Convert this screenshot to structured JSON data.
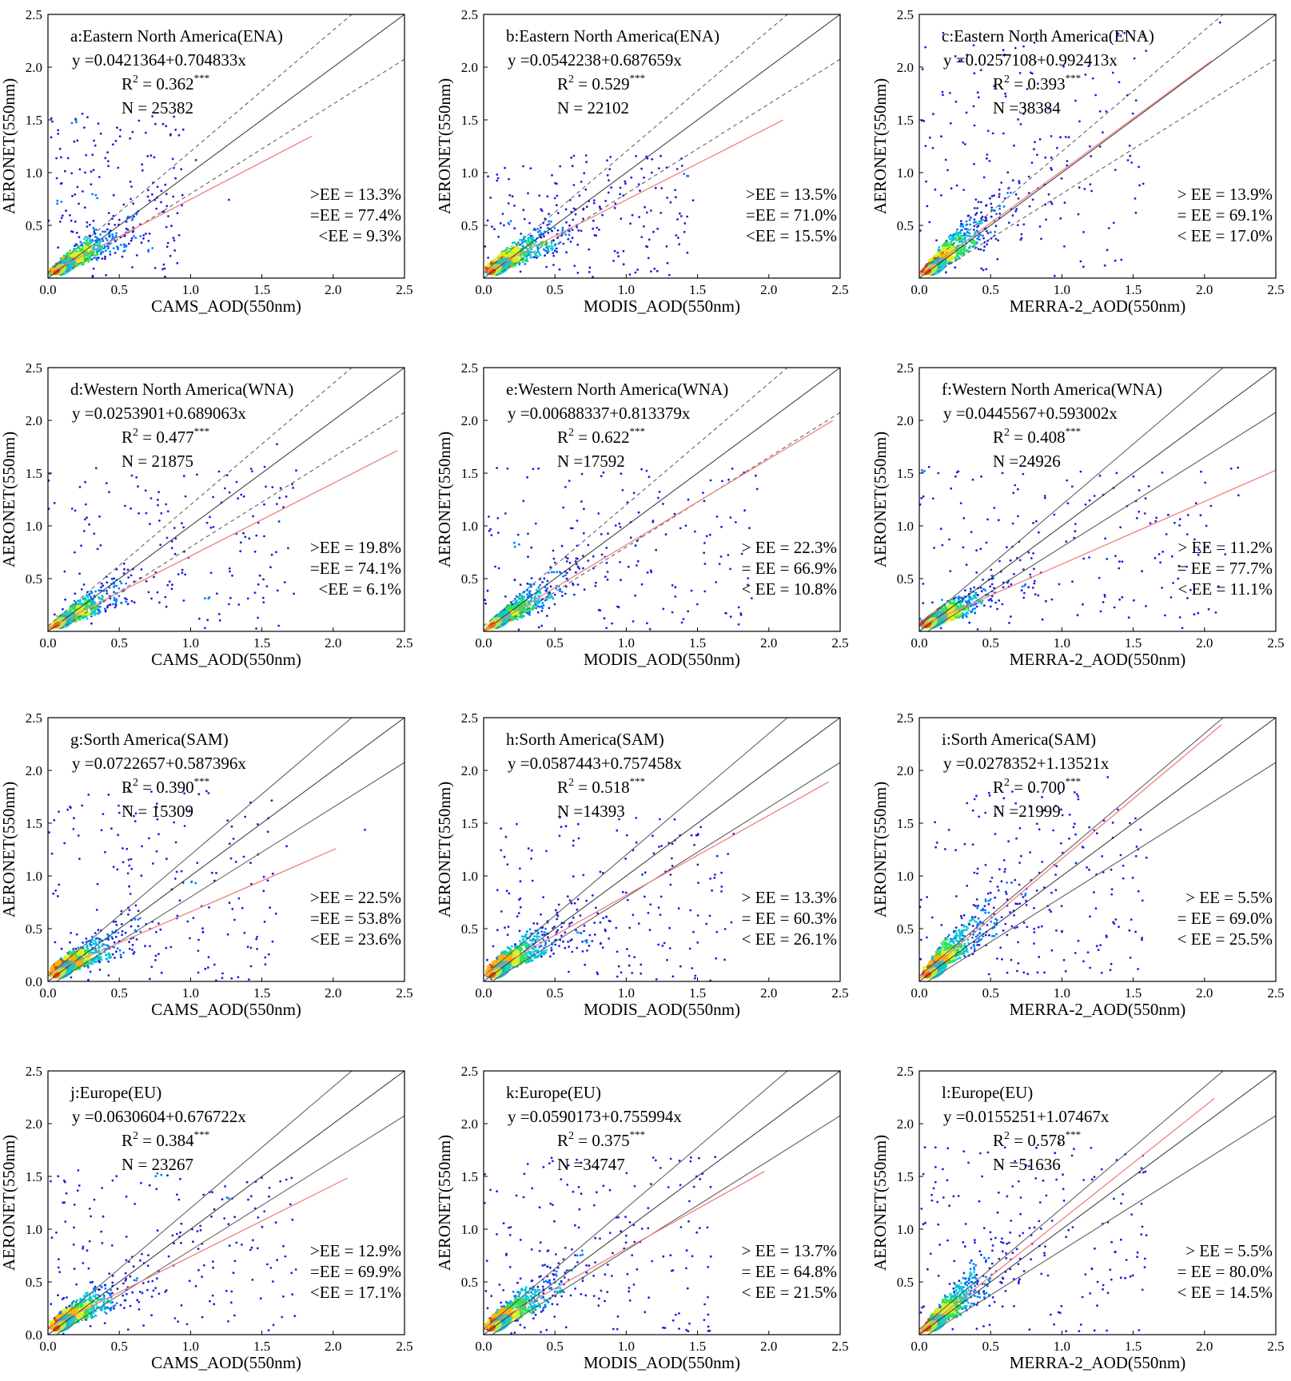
{
  "chart_data": [
    {
      "panel": "a",
      "type": "scatter",
      "title": "a:Eastern North America(ENA)",
      "equation": "y =0.0421364+0.704833x",
      "r2_value": "0.362",
      "r2_sig": "***",
      "n_text": "N = 25382",
      "intercept": 0.0421364,
      "slope": 0.704833,
      "fit_xmax": 1.85,
      "xlabel": "CAMS_AOD(550nm)",
      "ylabel": "AERONET(550nm)",
      "ee_above": ">EE = 13.3%",
      "ee_within": "=EE = 77.4%",
      "ee_below": "<EE = 9.3%",
      "ee_dashed": true,
      "spread_x": 0.3,
      "spread_y": 0.6,
      "xlim": [
        0,
        2.5
      ],
      "ylim": [
        0,
        2.5
      ]
    },
    {
      "panel": "b",
      "type": "scatter",
      "title": "b:Eastern North America(ENA)",
      "equation": "y =0.0542238+0.687659x",
      "r2_value": "0.529",
      "r2_sig": "***",
      "n_text": "N = 22102",
      "intercept": 0.0542238,
      "slope": 0.687659,
      "fit_xmax": 2.1,
      "xlabel": "MODIS_AOD(550nm)",
      "ylabel": "AERONET(550nm)",
      "ee_above": ">EE = 13.5%",
      "ee_within": "=EE = 71.0%",
      "ee_below": "<EE = 15.5%",
      "ee_dashed": true,
      "spread_x": 0.45,
      "spread_y": 0.45,
      "xlim": [
        0,
        2.5
      ],
      "ylim": [
        0,
        2.5
      ]
    },
    {
      "panel": "c",
      "type": "scatter",
      "title": "c:Eastern North America(ENA)",
      "equation": "y =0.0257108+0.992413x",
      "r2_value": "0.393",
      "r2_sig": "***",
      "n_text": "N =38384",
      "intercept": 0.0257108,
      "slope": 0.992413,
      "fit_xmax": 2.05,
      "xlabel": "MERRA-2_AOD(550nm)",
      "ylabel": "AERONET(550nm)",
      "ee_above": "> EE = 13.9%",
      "ee_within": "= EE = 69.1%",
      "ee_below": "< EE = 17.0%",
      "ee_dashed": true,
      "spread_x": 0.5,
      "spread_y": 0.9,
      "xlim": [
        0,
        2.5
      ],
      "ylim": [
        0,
        2.5
      ]
    },
    {
      "panel": "d",
      "type": "scatter",
      "title": "d:Western North America(WNA)",
      "equation": "y =0.0253901+0.689063x",
      "r2_value": "0.477",
      "r2_sig": "***",
      "n_text": "N = 21875",
      "intercept": 0.0253901,
      "slope": 0.689063,
      "fit_xmax": 2.45,
      "xlabel": "CAMS_AOD(550nm)",
      "ylabel": "AERONET(550nm)",
      "ee_above": ">EE = 19.8%",
      "ee_within": "=EE = 74.1%",
      "ee_below": "<EE = 6.1%",
      "ee_dashed": true,
      "spread_x": 0.55,
      "spread_y": 0.6,
      "xlim": [
        0,
        2.5
      ],
      "ylim": [
        0,
        2.5
      ]
    },
    {
      "panel": "e",
      "type": "scatter",
      "title": "e:Western North America(WNA)",
      "equation": "y =0.00688337+0.813379x",
      "r2_value": "0.622",
      "r2_sig": "***",
      "n_text": "N =17592",
      "intercept": 0.00688337,
      "slope": 0.813379,
      "fit_xmax": 2.45,
      "xlabel": "MODIS_AOD(550nm)",
      "ylabel": "AERONET(550nm)",
      "ee_above": "> EE = 22.3%",
      "ee_within": "= EE = 66.9%",
      "ee_below": "< EE = 10.8%",
      "ee_dashed": true,
      "spread_x": 0.6,
      "spread_y": 0.6,
      "xlim": [
        0,
        2.5
      ],
      "ylim": [
        0,
        2.5
      ]
    },
    {
      "panel": "f",
      "type": "scatter",
      "title": "f:Western North America(WNA)",
      "equation": "y =0.0445567+0.593002x",
      "r2_value": "0.408",
      "r2_sig": "***",
      "n_text": "N =24926",
      "intercept": 0.0445567,
      "slope": 0.593002,
      "fit_xmax": 2.5,
      "xlabel": "MERRA-2_AOD(550nm)",
      "ylabel": "AERONET(550nm)",
      "ee_above": "> EE = 11.2%",
      "ee_within": "= EE = 77.7%",
      "ee_below": "< EE = 11.1%",
      "ee_dashed": false,
      "spread_x": 0.7,
      "spread_y": 0.6,
      "xlim": [
        0,
        2.5
      ],
      "ylim": [
        0,
        2.5
      ]
    },
    {
      "panel": "g",
      "type": "scatter",
      "title": "g:Sorth America(SAM)",
      "equation": "y =0.0722657+0.587396x",
      "r2_value": "0.390",
      "r2_sig": "***",
      "n_text": "N = 15309",
      "intercept": 0.0722657,
      "slope": 0.587396,
      "fit_xmax": 2.02,
      "xlabel": "CAMS_AOD(550nm)",
      "ylabel": "AERONET(550nm)",
      "ee_above": ">EE = 22.5%",
      "ee_within": "=EE = 53.8%",
      "ee_below": "<EE = 23.6%",
      "ee_dashed": false,
      "spread_x": 0.5,
      "spread_y": 0.7,
      "xlim": [
        0,
        2.5
      ],
      "ylim": [
        0,
        2.5
      ]
    },
    {
      "panel": "h",
      "type": "scatter",
      "title": "h:Sorth America(SAM)",
      "equation": "y =0.0587443+0.757458x",
      "r2_value": "0.518",
      "r2_sig": "***",
      "n_text": "N =14393",
      "intercept": 0.0587443,
      "slope": 0.757458,
      "fit_xmax": 2.42,
      "xlabel": "MODIS_AOD(550nm)",
      "ylabel": "AERONET(550nm)",
      "ee_above": "> EE = 13.3%",
      "ee_within": "= EE = 60.3%",
      "ee_below": "< EE = 26.1%",
      "ee_dashed": false,
      "spread_x": 0.55,
      "spread_y": 0.6,
      "xlim": [
        0,
        2.5
      ],
      "ylim": [
        0,
        2.5
      ]
    },
    {
      "panel": "i",
      "type": "scatter",
      "title": "i:Sorth America(SAM)",
      "equation": "y =0.0278352+1.13521x",
      "r2_value": "0.700",
      "r2_sig": "***",
      "n_text": "N =21999",
      "intercept": 0.0278352,
      "slope": 1.13521,
      "fit_xmax": 2.12,
      "xlabel": "MERRA-2_AOD(550nm)",
      "ylabel": "AERONET(550nm)",
      "ee_above": "> EE = 5.5%",
      "ee_within": "= EE = 69.0%",
      "ee_below": "< EE = 25.5%",
      "ee_dashed": false,
      "spread_x": 0.5,
      "spread_y": 0.7,
      "xlim": [
        0,
        2.5
      ],
      "ylim": [
        0,
        2.5
      ]
    },
    {
      "panel": "j",
      "type": "scatter",
      "title": "j:Europe(EU)",
      "equation": "y =0.0630604+0.676722x",
      "r2_value": "0.384",
      "r2_sig": "***",
      "n_text": "N = 23267",
      "intercept": 0.0630604,
      "slope": 0.676722,
      "fit_xmax": 2.1,
      "xlabel": "CAMS_AOD(550nm)",
      "ylabel": "AERONET(550nm)",
      "ee_above": ">EE = 12.9%",
      "ee_within": "=EE = 69.9%",
      "ee_below": "<EE = 17.1%",
      "ee_dashed": false,
      "spread_x": 0.55,
      "spread_y": 0.6,
      "xlim": [
        0,
        2.5
      ],
      "ylim": [
        0,
        2.5
      ]
    },
    {
      "panel": "k",
      "type": "scatter",
      "title": "k:Europe(EU)",
      "equation": "y =0.0590173+0.755994x",
      "r2_value": "0.375",
      "r2_sig": "***",
      "n_text": "N =34747",
      "intercept": 0.0590173,
      "slope": 0.755994,
      "fit_xmax": 1.97,
      "xlabel": "MODIS_AOD(550nm)",
      "ylabel": "AERONET(550nm)",
      "ee_above": "> EE = 13.7%",
      "ee_within": "= EE = 64.8%",
      "ee_below": "< EE = 21.5%",
      "ee_dashed": false,
      "spread_x": 0.5,
      "spread_y": 0.65,
      "xlim": [
        0,
        2.5
      ],
      "ylim": [
        0,
        2.5
      ]
    },
    {
      "panel": "l",
      "type": "scatter",
      "title": "l:Europe(EU)",
      "equation": "y =0.0155251+1.07467x",
      "r2_value": "0.578",
      "r2_sig": "***",
      "n_text": "N =51636",
      "intercept": 0.0155251,
      "slope": 1.07467,
      "fit_xmax": 2.07,
      "xlabel": "MERRA-2_AOD(550nm)",
      "ylabel": "AERONET(550nm)",
      "ee_above": "> EE = 5.5%",
      "ee_within": "= EE = 80.0%",
      "ee_below": "< EE = 14.5%",
      "ee_dashed": false,
      "spread_x": 0.5,
      "spread_y": 0.7,
      "xlim": [
        0,
        2.5
      ],
      "ylim": [
        0,
        2.5
      ]
    }
  ],
  "axis": {
    "xticks": [
      "0.0",
      "0.5",
      "1.0",
      "1.5",
      "2.0",
      "2.5"
    ],
    "yticks": [
      "0.5",
      "1.0",
      "1.5",
      "2.0",
      "2.5"
    ],
    "y_zero_label": "0.0",
    "r2_prefix": "R",
    "r2_exp": "2",
    "r2_eq": " = "
  },
  "colors": {
    "fit_line": "#f08080",
    "one_to_one": "#333333",
    "ee_lines": "#555555",
    "density": [
      "#2a007a",
      "#1f1fd8",
      "#0079ff",
      "#00c8d8",
      "#2fe05a",
      "#d8f020",
      "#ffb000",
      "#ff3000"
    ]
  }
}
